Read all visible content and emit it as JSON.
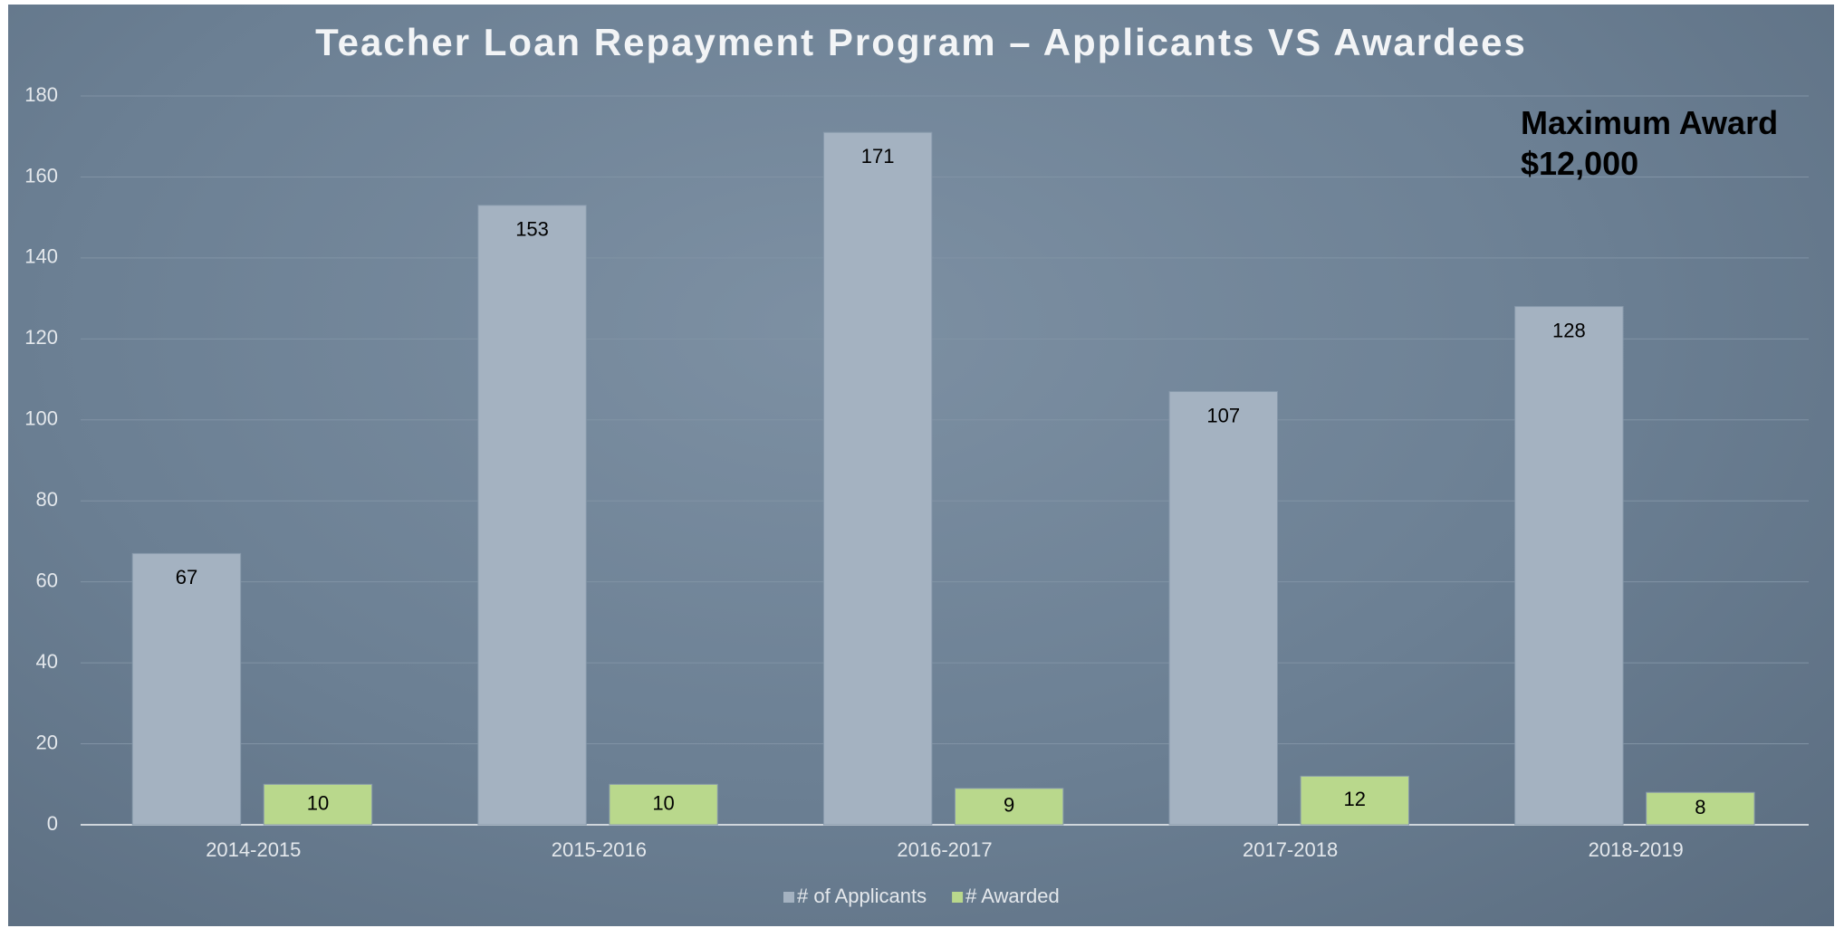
{
  "chart_data": {
    "type": "bar",
    "title": "Teacher Loan Repayment Program – Applicants VS Awardees",
    "annotation": "Maximum Award $12,000",
    "categories": [
      "2014-2015",
      "2015-2016",
      "2016-2017",
      "2017-2018",
      "2018-2019"
    ],
    "series": [
      {
        "name": "# of Applicants",
        "color": "#a4b2c1",
        "values": [
          67,
          153,
          171,
          107,
          128
        ]
      },
      {
        "name": "# Awarded",
        "color": "#b9d88c",
        "values": [
          10,
          10,
          9,
          12,
          8
        ]
      }
    ],
    "ylim": [
      0,
      180
    ],
    "yticks": [
      0,
      20,
      40,
      60,
      80,
      100,
      120,
      140,
      160,
      180
    ],
    "grid": true,
    "legend": "bottom"
  }
}
